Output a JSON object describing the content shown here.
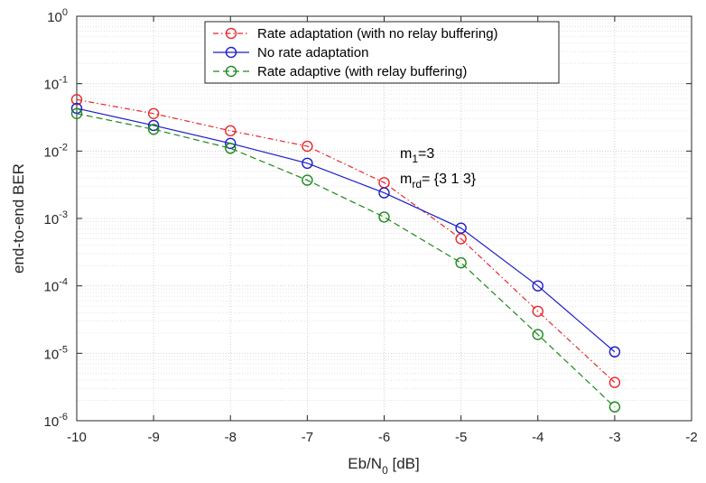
{
  "chart_data": {
    "type": "line",
    "title": "",
    "xlabel": {
      "base": "Eb/N",
      "sub": "0",
      "unit": " [dB]"
    },
    "ylabel": "end-to-end BER",
    "xlim": [
      -10,
      -2
    ],
    "ylim": [
      1e-06,
      1
    ],
    "yscale": "log",
    "grid": true,
    "x_ticks": [
      "-10",
      "-9",
      "-8",
      "-7",
      "-6",
      "-5",
      "-4",
      "-3",
      "-2"
    ],
    "y_ticks": [
      {
        "base": "10",
        "exp": "-6"
      },
      {
        "base": "10",
        "exp": "-5"
      },
      {
        "base": "10",
        "exp": "-4"
      },
      {
        "base": "10",
        "exp": "-3"
      },
      {
        "base": "10",
        "exp": "-2"
      },
      {
        "base": "10",
        "exp": "-1"
      },
      {
        "base": "10",
        "exp": "0"
      }
    ],
    "legend_position": "top",
    "series": [
      {
        "name": "Rate adaptation (with no relay buffering)",
        "color": "#e8262d",
        "line_style": "dash-dot",
        "marker": "circle",
        "x": [
          -10,
          -9,
          -8,
          -7,
          -6,
          -5,
          -4,
          -3
        ],
        "y": [
          0.058,
          0.036,
          0.02,
          0.0118,
          0.0034,
          0.0005,
          4.2e-05,
          3.7e-06
        ]
      },
      {
        "name": "No rate adaptation",
        "color": "#1c1cc8",
        "line_style": "solid",
        "marker": "circle",
        "x": [
          -10,
          -9,
          -8,
          -7,
          -6,
          -5,
          -4,
          -3
        ],
        "y": [
          0.043,
          0.024,
          0.013,
          0.0066,
          0.0024,
          0.00072,
          0.0001,
          1.05e-05
        ]
      },
      {
        "name": "Rate adaptive (with relay buffering)",
        "color": "#1c8a1c",
        "line_style": "dashed",
        "marker": "circle",
        "x": [
          -10,
          -9,
          -8,
          -7,
          -6,
          -5,
          -4,
          -3
        ],
        "y": [
          0.036,
          0.021,
          0.011,
          0.0037,
          0.00105,
          0.00022,
          1.9e-05,
          1.6e-06
        ]
      }
    ],
    "annotations": [
      {
        "base": "m",
        "sub": "1",
        "rest": "=3"
      },
      {
        "base": "m",
        "sub": "rd",
        "rest": "= {3 1 3}"
      }
    ]
  }
}
